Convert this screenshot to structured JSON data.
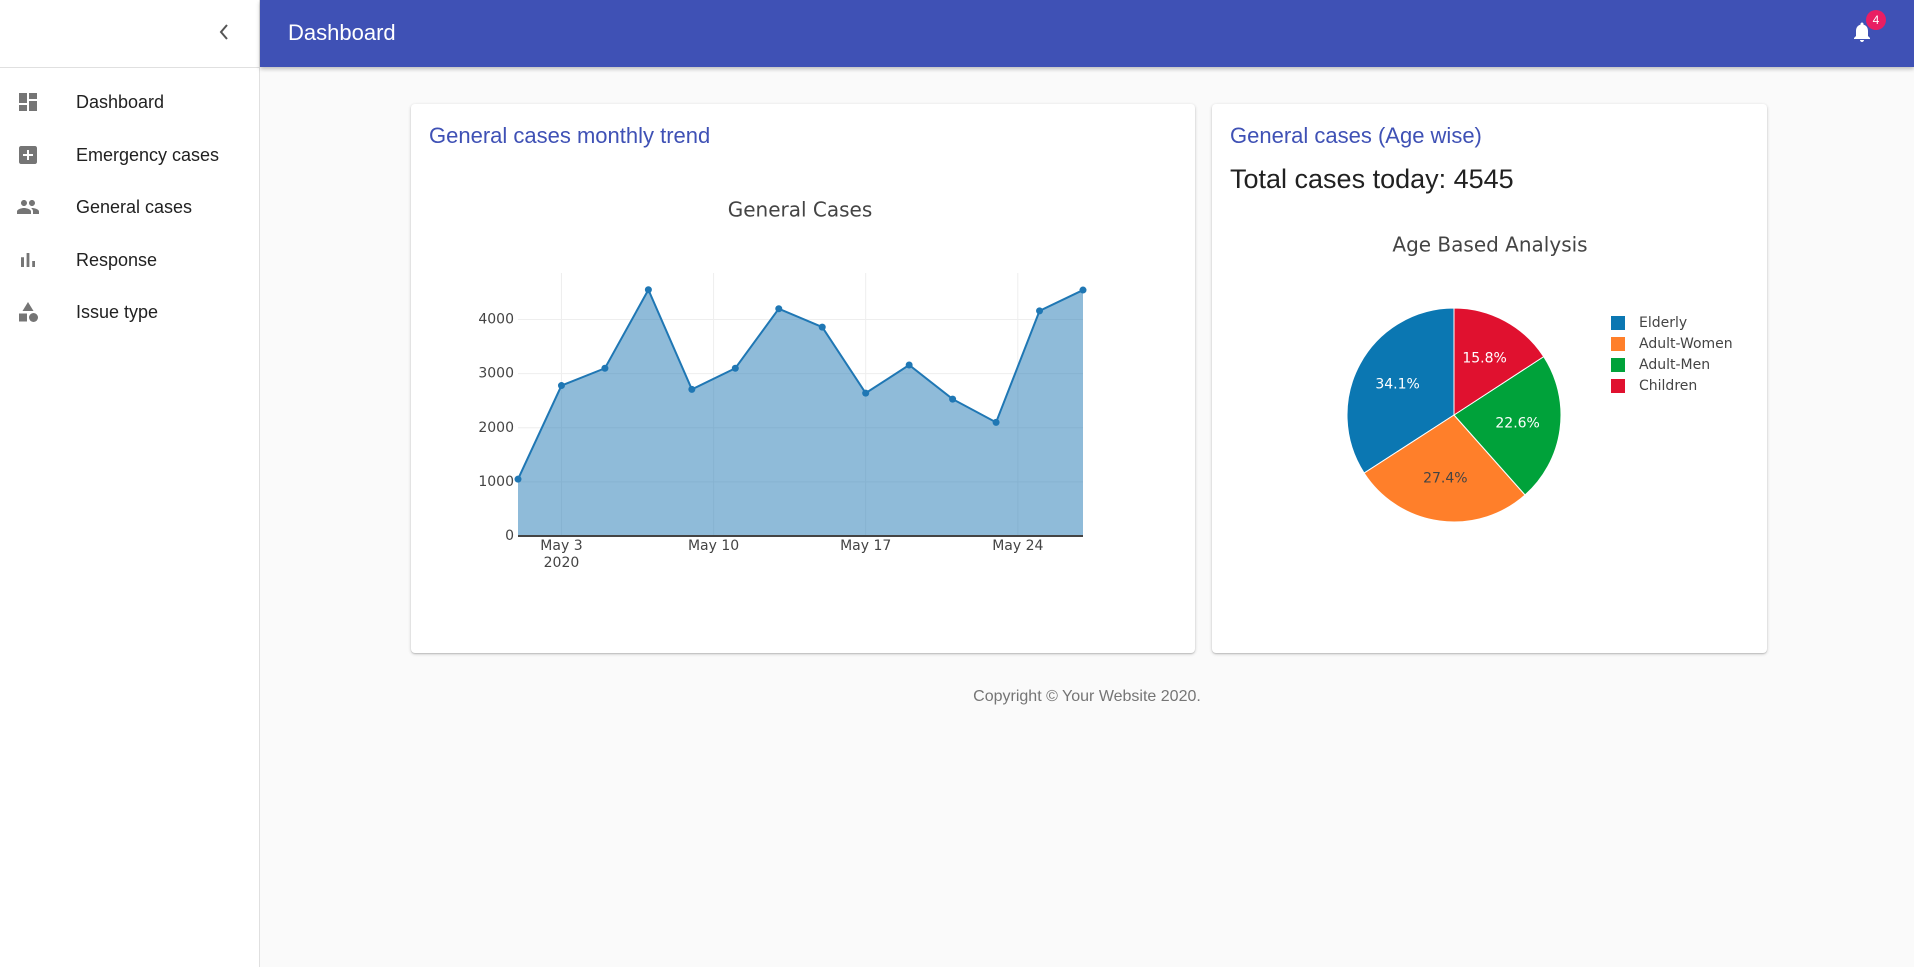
{
  "header": {
    "title": "Dashboard",
    "notifications": 4
  },
  "sidebar": {
    "items": [
      {
        "label": "Dashboard"
      },
      {
        "label": "Emergency cases"
      },
      {
        "label": "General cases"
      },
      {
        "label": "Response"
      },
      {
        "label": "Issue type"
      }
    ]
  },
  "cards": [
    {
      "title": "General cases monthly trend"
    },
    {
      "title": "General cases (Age wise)",
      "subtitle": "Total cases today: 4545"
    }
  ],
  "footer": "Copyright © Your Website 2020.",
  "chart_data": [
    {
      "type": "area",
      "title": "General Cases",
      "color": "#1f77b4",
      "x": [
        "2020-05-01",
        "2020-05-03",
        "2020-05-05",
        "2020-05-07",
        "2020-05-09",
        "2020-05-11",
        "2020-05-13",
        "2020-05-15",
        "2020-05-17",
        "2020-05-19",
        "2020-05-21",
        "2020-05-23",
        "2020-05-25",
        "2020-05-27"
      ],
      "values": [
        1050,
        2780,
        3100,
        4550,
        2710,
        3100,
        4200,
        3860,
        2640,
        3160,
        2530,
        2100,
        4160,
        4545
      ],
      "xlim": [
        "2020-05-01",
        "2020-05-27"
      ],
      "xticks": [
        {
          "value": "2020-05-03",
          "label": "May 3\n2020"
        },
        {
          "value": "2020-05-10",
          "label": "May 10"
        },
        {
          "value": "2020-05-17",
          "label": "May 17"
        },
        {
          "value": "2020-05-24",
          "label": "May 24"
        }
      ],
      "ylim": [
        0,
        4860
      ],
      "yticks": [
        0,
        1000,
        2000,
        3000,
        4000
      ],
      "grid": true
    },
    {
      "type": "pie",
      "title": "Age Based Analysis",
      "categories": [
        "Elderly",
        "Adult-Women",
        "Adult-Men",
        "Children"
      ],
      "values": [
        34.1,
        27.4,
        22.6,
        15.8
      ],
      "value_labels": [
        "34.1%",
        "27.4%",
        "22.6%",
        "15.8%"
      ],
      "colors": [
        "#0b77b2",
        "#ff7f2a",
        "#00a23a",
        "#e0112f"
      ],
      "direction": "counterclockwise",
      "legend": "right"
    }
  ]
}
